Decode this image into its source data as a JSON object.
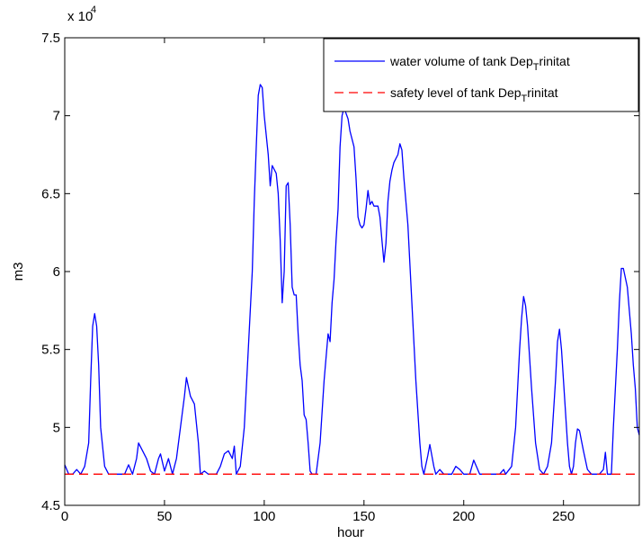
{
  "chart_data": {
    "type": "line",
    "xlabel": "hour",
    "ylabel": "m3",
    "y_exponent_label": "x 10",
    "y_exponent_power": "4",
    "xlim": [
      0,
      288
    ],
    "ylim": [
      45000,
      75000
    ],
    "x_ticks": [
      0,
      50,
      100,
      150,
      200,
      250
    ],
    "x_tick_labels": [
      "0",
      "50",
      "100",
      "150",
      "200",
      "250"
    ],
    "y_ticks": [
      45000,
      50000,
      55000,
      60000,
      65000,
      70000,
      75000
    ],
    "y_tick_labels": [
      "4.5",
      "5",
      "5.5",
      "6",
      "6.5",
      "7",
      "7.5"
    ],
    "grid": false,
    "legend_position": "top-right",
    "series": [
      {
        "name": "water volume of tank Dep_Trinitat",
        "legend_main": "water volume of tank Dep",
        "legend_sub": "T",
        "legend_tail": "rinitat",
        "color": "#0000ff",
        "style": "solid",
        "points": [
          [
            0,
            47600
          ],
          [
            2,
            47000
          ],
          [
            4,
            47000
          ],
          [
            6,
            47300
          ],
          [
            8,
            47000
          ],
          [
            10,
            47500
          ],
          [
            12,
            49000
          ],
          [
            13,
            53000
          ],
          [
            14,
            56500
          ],
          [
            15,
            57300
          ],
          [
            16,
            56500
          ],
          [
            17,
            54000
          ],
          [
            18,
            50000
          ],
          [
            20,
            47500
          ],
          [
            22,
            47000
          ],
          [
            26,
            47000
          ],
          [
            30,
            47000
          ],
          [
            32,
            47600
          ],
          [
            34,
            47000
          ],
          [
            36,
            48000
          ],
          [
            37,
            49000
          ],
          [
            39,
            48500
          ],
          [
            41,
            48000
          ],
          [
            43,
            47200
          ],
          [
            45,
            47000
          ],
          [
            47,
            48000
          ],
          [
            48,
            48300
          ],
          [
            50,
            47200
          ],
          [
            52,
            48000
          ],
          [
            54,
            47000
          ],
          [
            56,
            48000
          ],
          [
            58,
            50000
          ],
          [
            60,
            52000
          ],
          [
            61,
            53200
          ],
          [
            63,
            52000
          ],
          [
            65,
            51500
          ],
          [
            67,
            49000
          ],
          [
            68,
            47000
          ],
          [
            70,
            47200
          ],
          [
            72,
            47000
          ],
          [
            76,
            47000
          ],
          [
            78,
            47500
          ],
          [
            80,
            48300
          ],
          [
            82,
            48500
          ],
          [
            84,
            48000
          ],
          [
            85,
            48800
          ],
          [
            86,
            47000
          ],
          [
            88,
            47500
          ],
          [
            90,
            50000
          ],
          [
            92,
            55000
          ],
          [
            94,
            60000
          ],
          [
            95,
            64500
          ],
          [
            96,
            68000
          ],
          [
            97,
            71300
          ],
          [
            98,
            72000
          ],
          [
            99,
            71800
          ],
          [
            100,
            70000
          ],
          [
            102,
            67500
          ],
          [
            103,
            65500
          ],
          [
            104,
            66800
          ],
          [
            106,
            66300
          ],
          [
            107,
            65000
          ],
          [
            108,
            62000
          ],
          [
            109,
            58000
          ],
          [
            110,
            60000
          ],
          [
            111,
            65500
          ],
          [
            112,
            65700
          ],
          [
            113,
            63000
          ],
          [
            114,
            59000
          ],
          [
            115,
            58500
          ],
          [
            116,
            58500
          ],
          [
            117,
            56000
          ],
          [
            118,
            54000
          ],
          [
            119,
            53000
          ],
          [
            120,
            50800
          ],
          [
            121,
            50500
          ],
          [
            122,
            49000
          ],
          [
            123,
            47200
          ],
          [
            124,
            47000
          ],
          [
            126,
            47000
          ],
          [
            128,
            49000
          ],
          [
            130,
            53000
          ],
          [
            132,
            56000
          ],
          [
            133,
            55500
          ],
          [
            134,
            58000
          ],
          [
            135,
            59500
          ],
          [
            136,
            62000
          ],
          [
            137,
            64000
          ],
          [
            138,
            68000
          ],
          [
            139,
            70000
          ],
          [
            140,
            70500
          ],
          [
            142,
            69800
          ],
          [
            143,
            69000
          ],
          [
            145,
            68000
          ],
          [
            146,
            66000
          ],
          [
            147,
            63500
          ],
          [
            148,
            63000
          ],
          [
            149,
            62800
          ],
          [
            150,
            63000
          ],
          [
            151,
            64000
          ],
          [
            152,
            65200
          ],
          [
            153,
            64300
          ],
          [
            154,
            64500
          ],
          [
            155,
            64200
          ],
          [
            157,
            64200
          ],
          [
            158,
            63500
          ],
          [
            159,
            62000
          ],
          [
            160,
            60600
          ],
          [
            161,
            61800
          ],
          [
            162,
            64500
          ],
          [
            163,
            65800
          ],
          [
            164,
            66500
          ],
          [
            165,
            67000
          ],
          [
            167,
            67500
          ],
          [
            168,
            68200
          ],
          [
            169,
            67800
          ],
          [
            170,
            66000
          ],
          [
            172,
            63000
          ],
          [
            174,
            58000
          ],
          [
            176,
            53000
          ],
          [
            178,
            49000
          ],
          [
            179,
            47500
          ],
          [
            180,
            47000
          ],
          [
            182,
            48200
          ],
          [
            183,
            48900
          ],
          [
            185,
            47500
          ],
          [
            186,
            47000
          ],
          [
            188,
            47300
          ],
          [
            190,
            47000
          ],
          [
            194,
            47000
          ],
          [
            196,
            47500
          ],
          [
            198,
            47300
          ],
          [
            200,
            47000
          ],
          [
            203,
            47000
          ],
          [
            205,
            47900
          ],
          [
            207,
            47300
          ],
          [
            208,
            47000
          ],
          [
            212,
            47000
          ],
          [
            218,
            47000
          ],
          [
            220,
            47300
          ],
          [
            221,
            47000
          ],
          [
            224,
            47500
          ],
          [
            226,
            50000
          ],
          [
            228,
            55000
          ],
          [
            229,
            57000
          ],
          [
            230,
            58400
          ],
          [
            231,
            57800
          ],
          [
            232,
            56500
          ],
          [
            234,
            52500
          ],
          [
            236,
            49000
          ],
          [
            238,
            47300
          ],
          [
            240,
            47000
          ],
          [
            242,
            47500
          ],
          [
            244,
            49000
          ],
          [
            246,
            53000
          ],
          [
            247,
            55500
          ],
          [
            248,
            56300
          ],
          [
            249,
            55000
          ],
          [
            250,
            53000
          ],
          [
            252,
            49000
          ],
          [
            253,
            47500
          ],
          [
            254,
            47000
          ],
          [
            255,
            47500
          ],
          [
            256,
            49000
          ],
          [
            257,
            49900
          ],
          [
            258,
            49800
          ],
          [
            260,
            48500
          ],
          [
            262,
            47300
          ],
          [
            264,
            47000
          ],
          [
            268,
            47000
          ],
          [
            270,
            47300
          ],
          [
            271,
            48400
          ],
          [
            272,
            47000
          ],
          [
            274,
            47000
          ],
          [
            275,
            50000
          ],
          [
            277,
            55000
          ],
          [
            278,
            58000
          ],
          [
            279,
            60200
          ],
          [
            280,
            60200
          ],
          [
            282,
            59000
          ],
          [
            284,
            56000
          ],
          [
            285,
            54000
          ],
          [
            286,
            52500
          ],
          [
            287,
            50000
          ],
          [
            288,
            49500
          ]
        ]
      },
      {
        "name": "safety level of tank Dep_Trinitat",
        "legend_main": "safety level of tank Dep",
        "legend_sub": "T",
        "legend_tail": "rinitat",
        "color": "#ff0000",
        "style": "dashed",
        "points": [
          [
            0,
            47000
          ],
          [
            288,
            47000
          ]
        ]
      }
    ]
  }
}
